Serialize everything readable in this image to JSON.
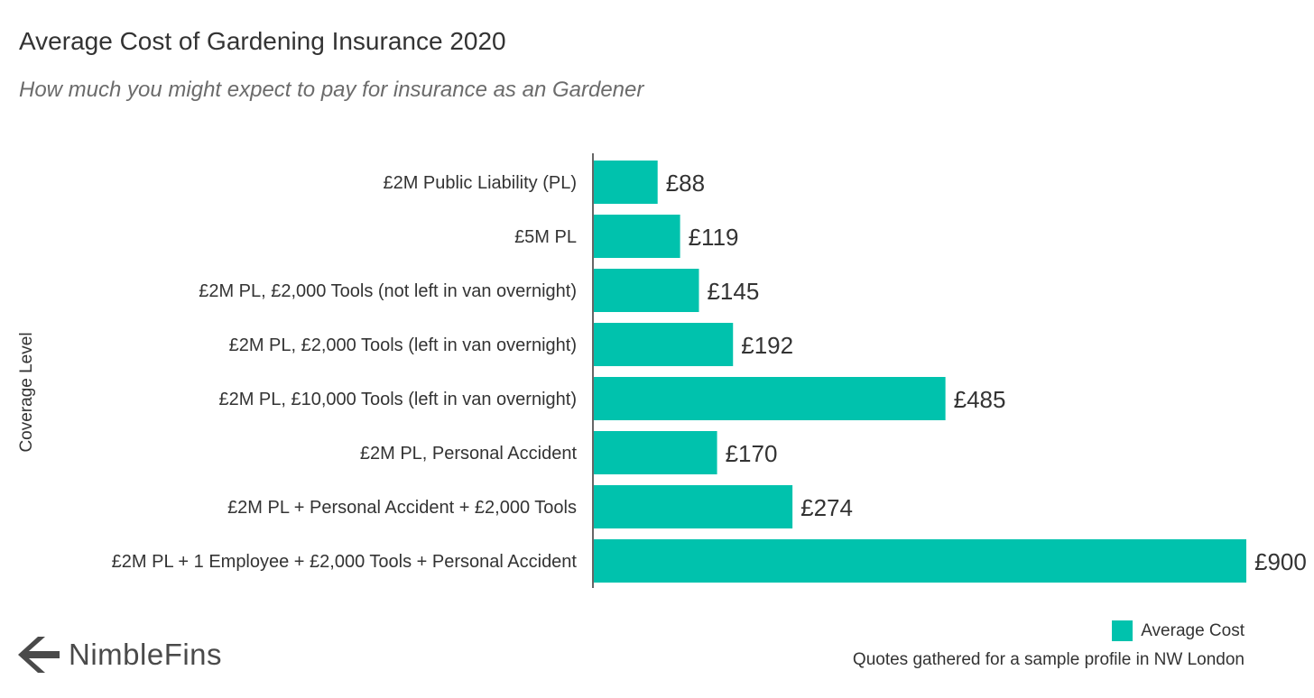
{
  "chart_data": {
    "type": "bar",
    "orientation": "horizontal",
    "title": "Average Cost of Gardening Insurance 2020",
    "subtitle": "How much you might expect to pay for insurance as an Gardener",
    "ylabel": "Coverage Level",
    "categories": [
      "£2M Public Liability (PL)",
      "£5M PL",
      "£2M PL, £2,000 Tools (not left in van overnight)",
      "£2M PL, £2,000 Tools (left in van overnight)",
      "£2M PL, £10,000 Tools (left in van overnight)",
      "£2M PL, Personal Accident",
      "£2M PL + Personal Accident + £2,000 Tools",
      "£2M PL + 1 Employee + £2,000 Tools + Personal Accident"
    ],
    "series": [
      {
        "name": "Average Cost",
        "values": [
          88,
          119,
          145,
          192,
          485,
          170,
          274,
          900
        ],
        "labels": [
          "£88",
          "£119",
          "£145",
          "£192",
          "£485",
          "£170",
          "£274",
          "£900"
        ],
        "color": "#00c2ad"
      }
    ],
    "xlim": [
      0,
      900
    ],
    "grid": false,
    "legend_position": "bottom-right",
    "source_note": "Quotes gathered for a sample profile in NW London"
  },
  "branding": {
    "logo_text": "NimbleFins",
    "logo_color": "#4a4a4a"
  },
  "colors": {
    "bar": "#00c2ad",
    "text": "#333333",
    "subtitle": "#6b6b6b",
    "axis": "#333333"
  }
}
